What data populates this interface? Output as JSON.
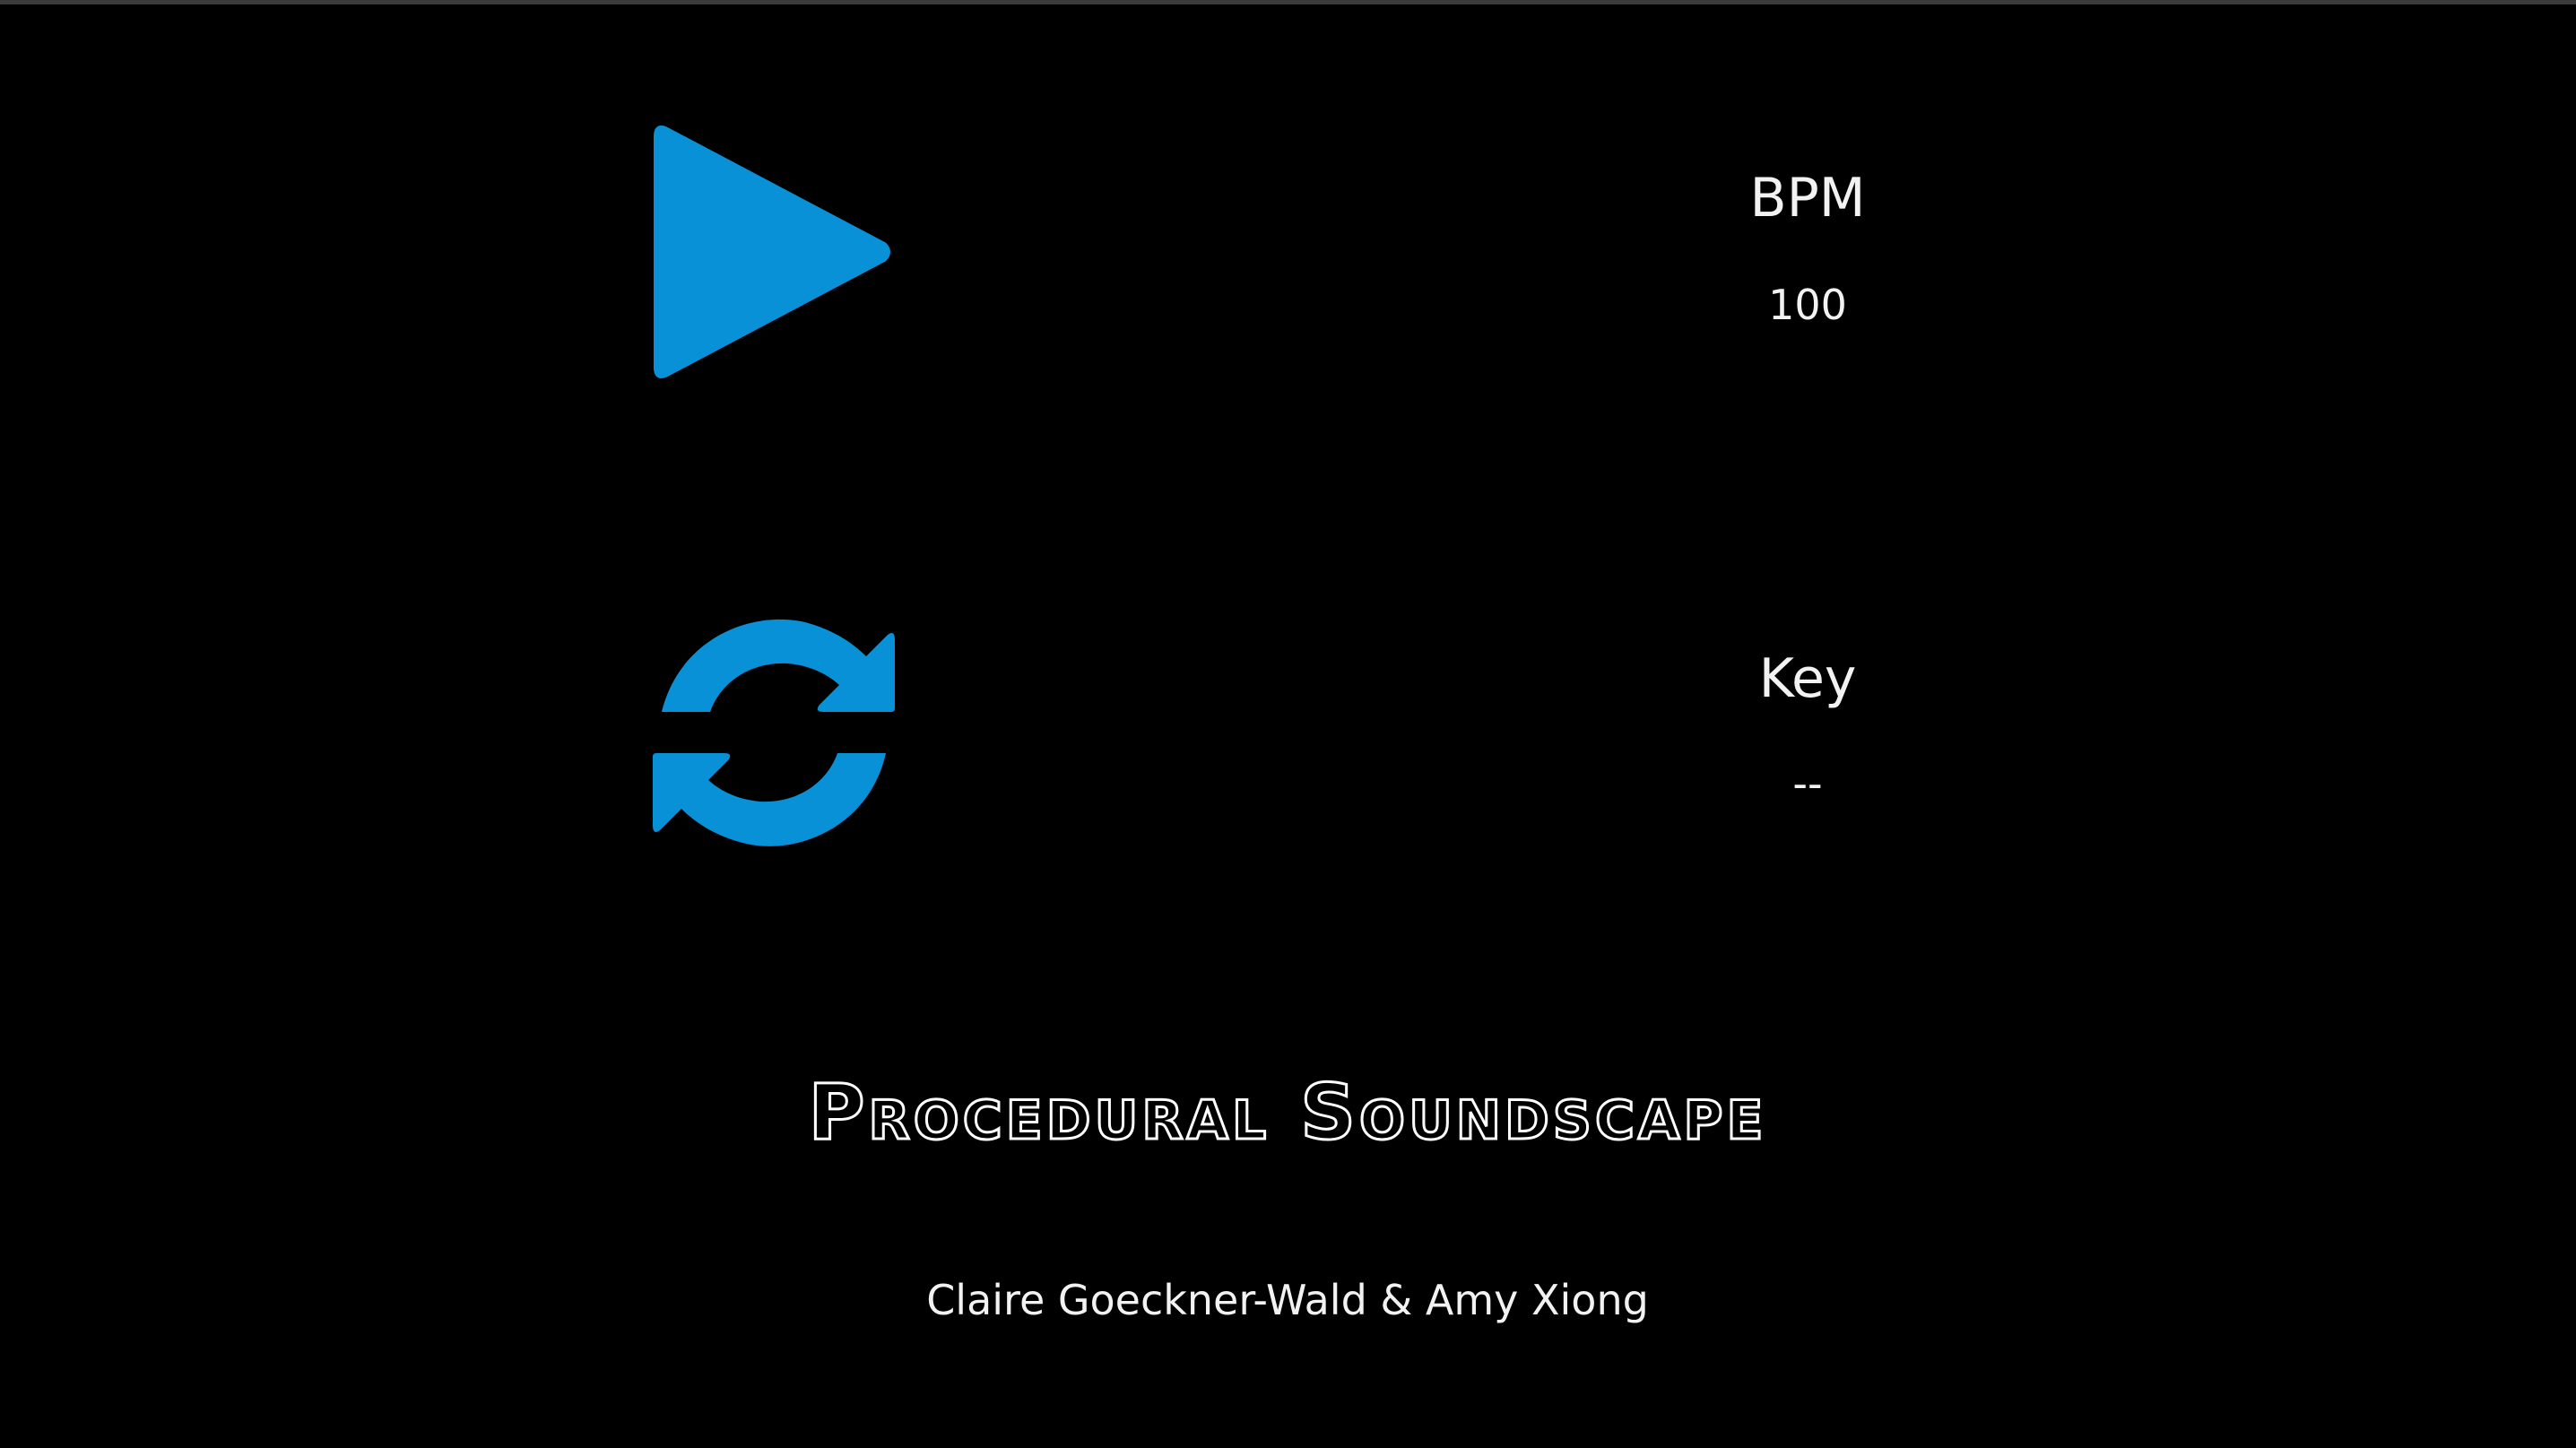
{
  "controls": {
    "play_icon": "play-icon",
    "refresh_icon": "refresh-icon",
    "accent_color": "#0891d6"
  },
  "stats": {
    "bpm_label": "BPM",
    "bpm_value": "100",
    "key_label": "Key",
    "key_value": "--"
  },
  "footer": {
    "title": "Procedural Soundscape",
    "credits": "Claire Goeckner-Wald & Amy Xiong"
  }
}
